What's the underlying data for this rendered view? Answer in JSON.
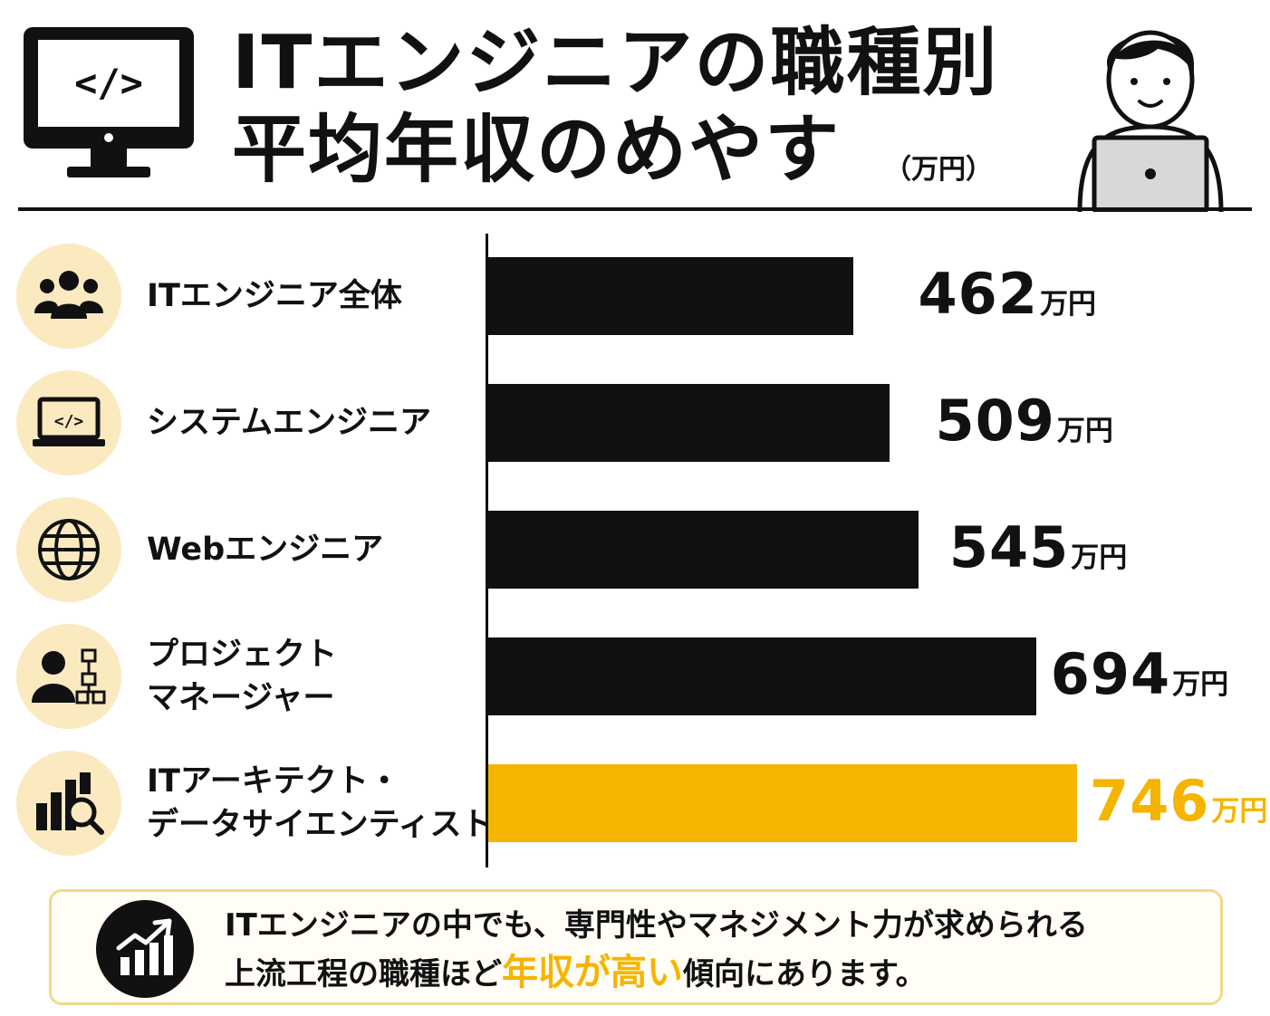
{
  "header": {
    "title_line1": "ITエンジニアの職種別",
    "title_line2": "平均年収のめやす",
    "unit": "（万円）",
    "monitor_icon_text": "</>"
  },
  "colors": {
    "bar": "#111111",
    "highlight": "#f5b400",
    "icon_bg": "#fbeac0"
  },
  "chart_data": {
    "type": "bar",
    "orientation": "horizontal",
    "categories": [
      [
        "ITエンジニア全体"
      ],
      [
        "システムエンジニア"
      ],
      [
        "Webエンジニア"
      ],
      [
        "プロジェクト",
        "マネージャー"
      ],
      [
        "ITアーキテクト・",
        "データサイエンティスト"
      ]
    ],
    "icons": [
      "people-group-icon",
      "laptop-code-icon",
      "globe-icon",
      "manager-org-icon",
      "chart-magnifier-icon"
    ],
    "values": [
      462,
      509,
      545,
      694,
      746
    ],
    "value_unit": "万円",
    "highlight_index": 4,
    "xlim": [
      0,
      900
    ],
    "grid": false
  },
  "footer": {
    "line1": "ITエンジニアの中でも、専門性やマネジメント力が求められる",
    "line2_before": "上流工程の職種ほど",
    "line2_emph": "年収が高い",
    "line2_after": "傾向にあります。"
  }
}
